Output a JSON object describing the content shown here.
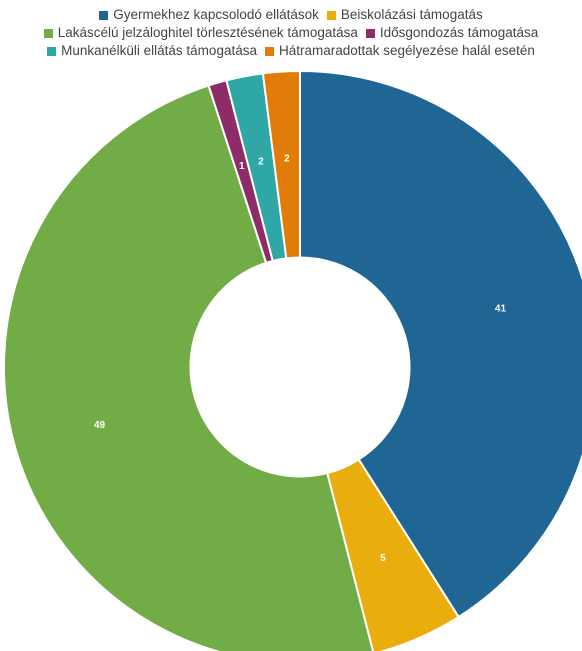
{
  "chart_data": {
    "type": "pie",
    "title": "",
    "legend_position": "top",
    "start_angle_degrees": 0,
    "inner_radius_ratio": 0.37,
    "slices": [
      {
        "label": "Gyermekhez kapcsolodó ellátások",
        "value": 41,
        "color": "#1f6694"
      },
      {
        "label": "Beiskolázási támogatás",
        "value": 5,
        "color": "#e9ae0e"
      },
      {
        "label": "Lakáscélú jelzáloghitel törlesztésének támogatása",
        "value": 49,
        "color": "#72ac46"
      },
      {
        "label": "Idősgondozás támogatása",
        "value": 1,
        "color": "#8e2c6a"
      },
      {
        "label": "Munkanélküli ellátás támogatása",
        "value": 2,
        "color": "#2ea7a6"
      },
      {
        "label": "Hátramaradottak segélyezése halál esetén",
        "value": 2,
        "color": "#e07c07"
      }
    ]
  }
}
